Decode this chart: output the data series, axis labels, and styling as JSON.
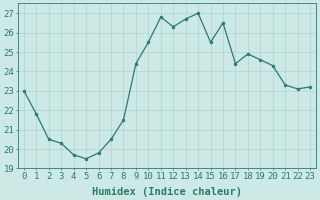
{
  "x": [
    0,
    1,
    2,
    3,
    4,
    5,
    6,
    7,
    8,
    9,
    10,
    11,
    12,
    13,
    14,
    15,
    16,
    17,
    18,
    19,
    20,
    21,
    22,
    23
  ],
  "y": [
    23.0,
    21.8,
    20.5,
    20.3,
    19.7,
    19.5,
    19.8,
    20.5,
    21.5,
    24.4,
    25.5,
    26.8,
    26.3,
    26.7,
    27.0,
    25.5,
    26.5,
    24.4,
    24.9,
    24.6,
    24.3,
    23.3,
    23.1,
    23.2
  ],
  "line_color": "#2d7a6b",
  "marker_color": "#2d7a6b",
  "bg_color": "#cce9e5",
  "grid_color": "#b0d4cf",
  "xlabel": "Humidex (Indice chaleur)",
  "ylabel_ticks": [
    19,
    20,
    21,
    22,
    23,
    24,
    25,
    26,
    27
  ],
  "xlim": [
    -0.5,
    23.5
  ],
  "ylim": [
    19,
    27.5
  ],
  "tick_color": "#2d7a6b",
  "label_color": "#2d7a6b",
  "font_size_label": 7.5,
  "font_size_tick": 6.5
}
